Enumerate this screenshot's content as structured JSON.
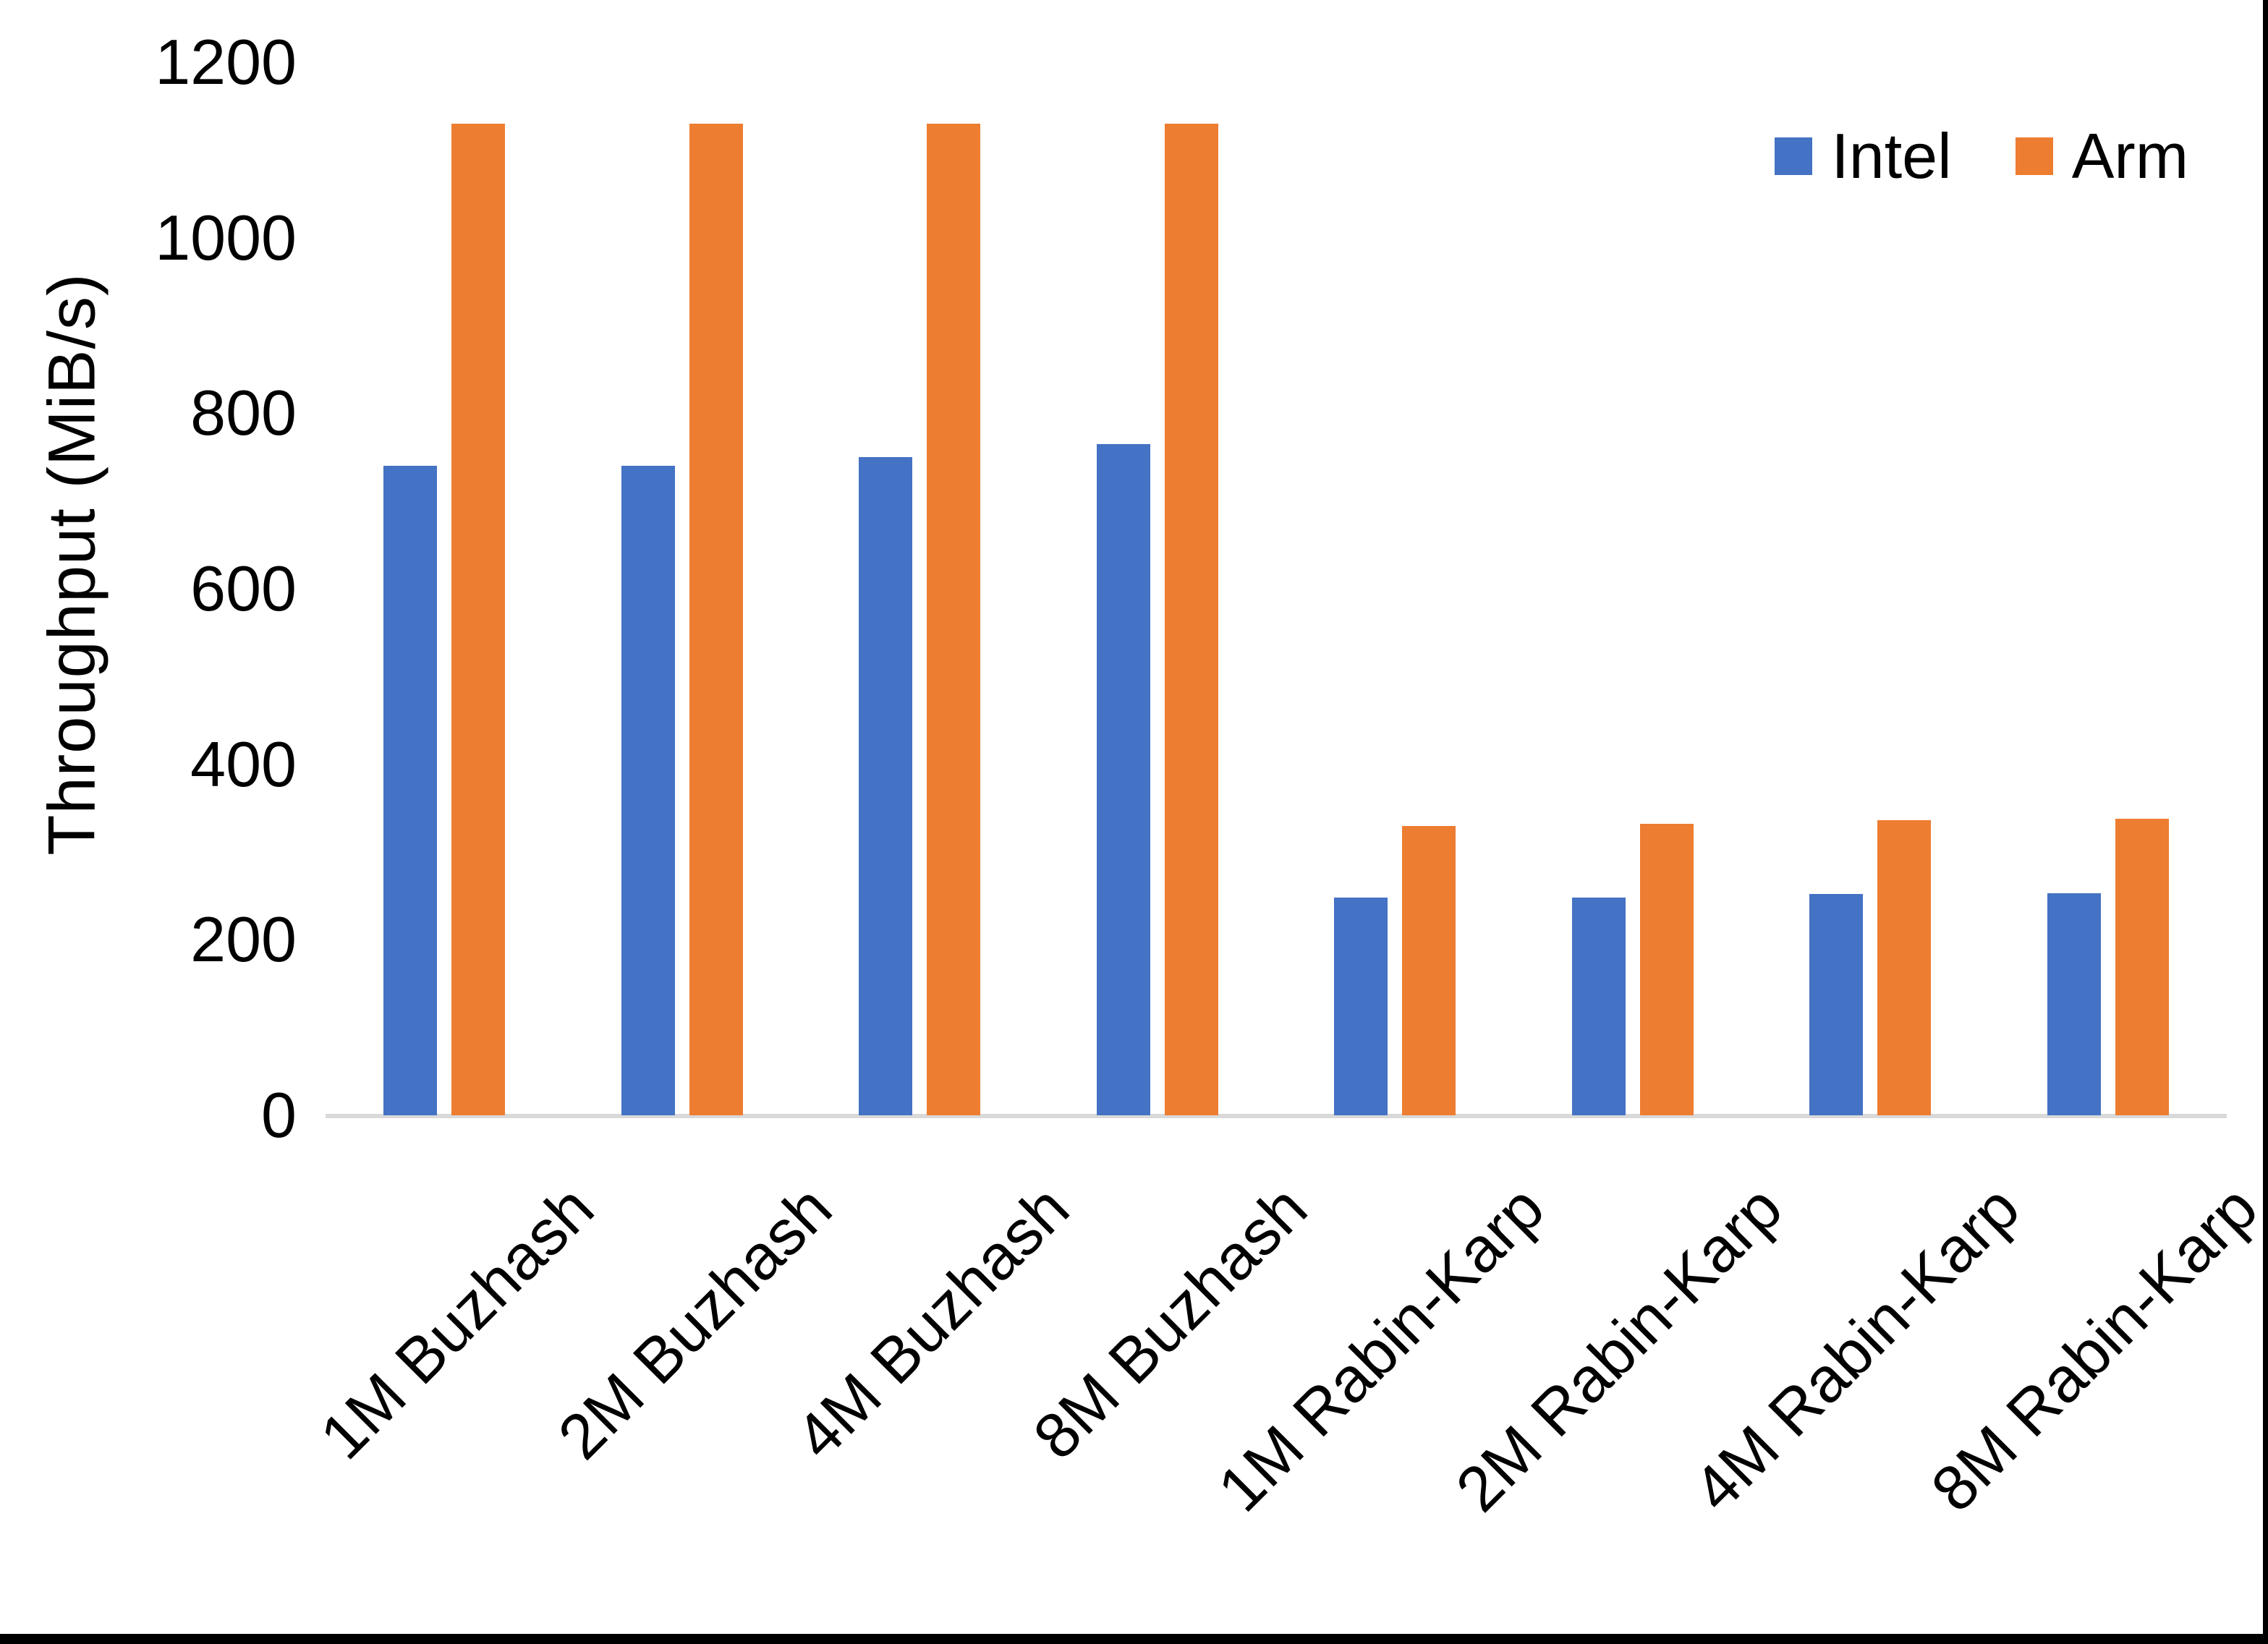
{
  "chart_data": {
    "type": "bar",
    "title": "",
    "xlabel": "",
    "ylabel": "Throughput (MiB/s)",
    "ylim": [
      0,
      1200
    ],
    "ytick_interval": 200,
    "yticks": [
      0,
      200,
      400,
      600,
      800,
      1000,
      1200
    ],
    "grid": false,
    "legend_position": "top-right",
    "categories": [
      "1M Buzhash",
      "2M Buzhash",
      "4M Buzhash",
      "8M Buzhash",
      "1M Rabin-Karp",
      "2M Rabin-Karp",
      "4M Rabin-Karp",
      "8M Rabin-Karp"
    ],
    "series": [
      {
        "name": "Intel",
        "color": "#4472C4",
        "values": [
          740,
          740,
          750,
          765,
          248,
          248,
          252,
          253
        ]
      },
      {
        "name": "Arm",
        "color": "#ED7D31",
        "values": [
          1130,
          1130,
          1130,
          1130,
          330,
          332,
          336,
          338
        ]
      }
    ],
    "colors": {
      "axis_line": "#D9D9D9",
      "text": "#000000",
      "frame_border": "#000000",
      "background": "#FFFFFF"
    }
  }
}
